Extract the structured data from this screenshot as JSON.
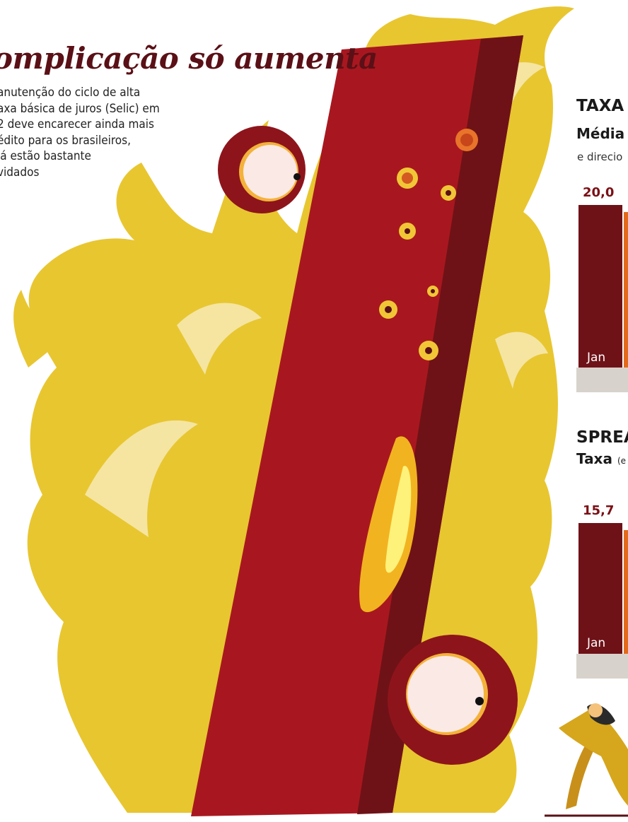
{
  "headline": "omplicação só aumenta",
  "lead_lines": [
    "anutenção do ciclo de alta",
    "axa básica de juros (Selic) em",
    "2 deve encarecer ainda mais",
    "édito para os brasileiros,",
    "já estão bastante",
    "vidados"
  ],
  "colors": {
    "bar_dark": "#6e1217",
    "bar_orange": "#e36a1c",
    "flame_yellow": "#e8c630",
    "percent_red": "#b11c24",
    "axis_band": "#d8d2cc"
  },
  "icons": [
    "percent-sign-illustration",
    "flames-illustration",
    "frightened-man-illustration"
  ],
  "chart_data": [
    {
      "type": "bar",
      "title": "TAXA",
      "subtitle": "Média",
      "note": "e direcio",
      "categories": [
        "Jan"
      ],
      "series": [
        {
          "values": [
            20.0
          ]
        }
      ],
      "value_labels": [
        "20,0"
      ]
    },
    {
      "type": "bar",
      "title": "SPREA",
      "subtitle": "Taxa",
      "subtitle_small": "(e",
      "categories": [
        "Jan"
      ],
      "series": [
        {
          "values": [
            15.7
          ]
        }
      ],
      "value_labels": [
        "15,7"
      ]
    }
  ]
}
